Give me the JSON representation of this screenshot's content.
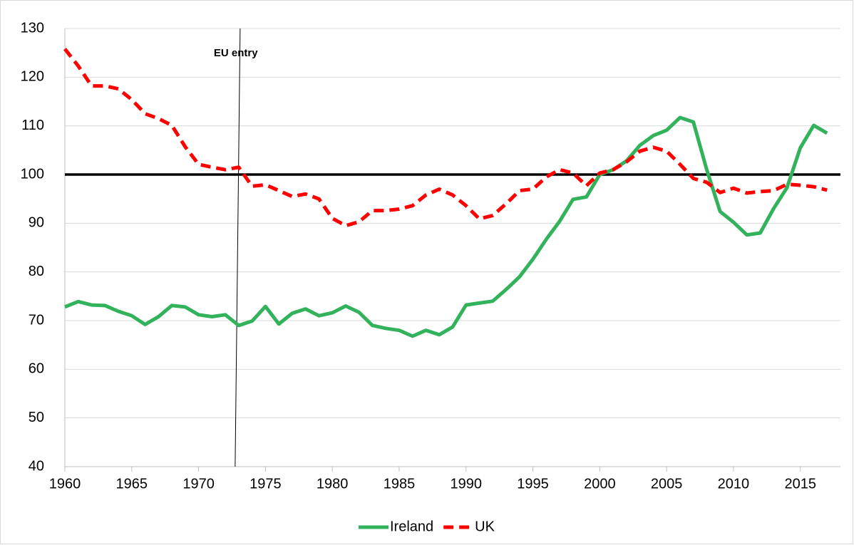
{
  "chart_data": {
    "type": "line",
    "x": [
      1960,
      1961,
      1962,
      1963,
      1964,
      1965,
      1966,
      1967,
      1968,
      1969,
      1970,
      1971,
      1972,
      1973,
      1974,
      1975,
      1976,
      1977,
      1978,
      1979,
      1980,
      1981,
      1982,
      1983,
      1984,
      1985,
      1986,
      1987,
      1988,
      1989,
      1990,
      1991,
      1992,
      1993,
      1994,
      1995,
      1996,
      1997,
      1998,
      1999,
      2000,
      2001,
      2002,
      2003,
      2004,
      2005,
      2006,
      2007,
      2008,
      2009,
      2010,
      2011,
      2012,
      2013,
      2014,
      2015,
      2016,
      2017
    ],
    "series": [
      {
        "name": "Ireland",
        "color": "#33b25c",
        "dash": false,
        "values": [
          72.8,
          73.9,
          73.2,
          73.1,
          71.9,
          71.0,
          69.2,
          70.8,
          73.1,
          72.8,
          71.2,
          70.8,
          71.2,
          69.0,
          69.9,
          72.9,
          69.3,
          71.5,
          72.4,
          71.0,
          71.6,
          73.0,
          71.7,
          69.0,
          68.4,
          68.0,
          66.8,
          68.0,
          67.1,
          68.7,
          73.2,
          73.6,
          74.0,
          76.4,
          79.0,
          82.6,
          86.7,
          90.4,
          94.9,
          95.4,
          100.0,
          101.0,
          102.8,
          106.0,
          108.0,
          109.1,
          111.7,
          110.8,
          101.0,
          92.4,
          90.2,
          87.6,
          88.0,
          93.0,
          97.3,
          105.5,
          110.1,
          108.5
        ]
      },
      {
        "name": "UK",
        "color": "#ff0000",
        "dash": true,
        "values": [
          125.8,
          122.3,
          118.2,
          118.2,
          117.6,
          115.4,
          112.5,
          111.5,
          110.1,
          105.7,
          102.1,
          101.5,
          101.0,
          101.5,
          97.6,
          97.9,
          96.7,
          95.5,
          96.0,
          95.0,
          91.0,
          89.5,
          90.3,
          92.6,
          92.6,
          92.9,
          93.6,
          95.8,
          97.0,
          95.8,
          93.6,
          90.9,
          91.6,
          94.0,
          96.7,
          97.0,
          99.5,
          101.0,
          100.3,
          97.7,
          100.3,
          101.0,
          102.6,
          104.8,
          105.6,
          104.8,
          102.1,
          99.2,
          98.4,
          96.3,
          97.2,
          96.2,
          96.5,
          96.7,
          98.0,
          97.8,
          97.5,
          96.8
        ]
      }
    ],
    "xlim": [
      1960,
      2018
    ],
    "xticks": [
      1960,
      1965,
      1970,
      1975,
      1980,
      1985,
      1990,
      1995,
      2000,
      2005,
      2010,
      2015
    ],
    "ylim": [
      40,
      130
    ],
    "yticks": [
      40,
      50,
      60,
      70,
      80,
      90,
      100,
      110,
      120,
      130
    ],
    "grid": true,
    "legend": "bottom",
    "reference_line": 100,
    "annotation": {
      "x": 1973,
      "label": "EU entry"
    }
  }
}
